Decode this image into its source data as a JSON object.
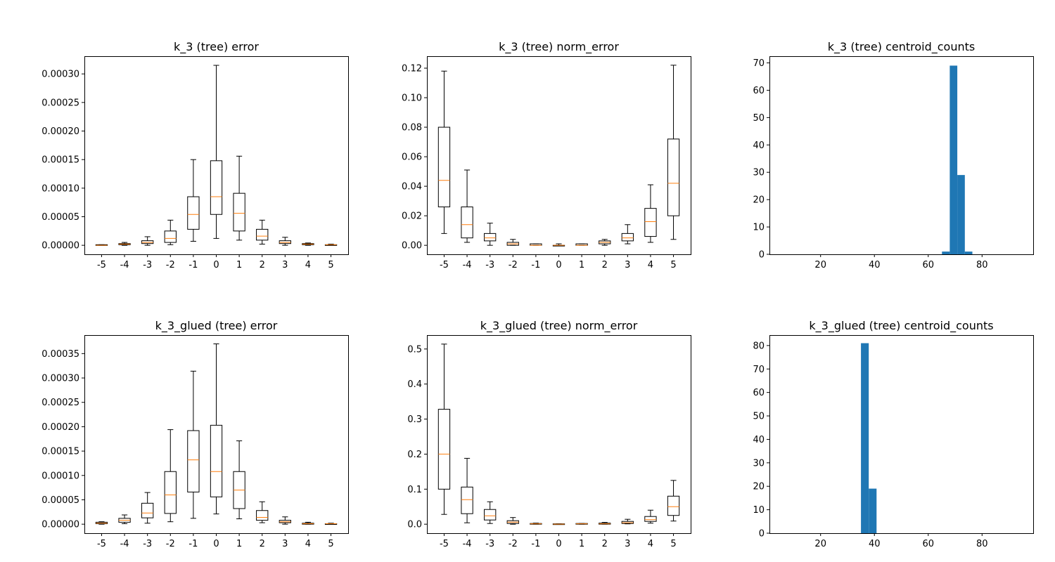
{
  "figure": {
    "background": "#ffffff"
  },
  "colors": {
    "box": "#000000",
    "median": "#ff7f0e",
    "hist": "#1f77b4"
  },
  "chart_data": [
    {
      "type": "box",
      "title": "k_3 (tree) error",
      "categories": [
        "-5",
        "-4",
        "-3",
        "-2",
        "-1",
        "0",
        "1",
        "2",
        "3",
        "4",
        "5"
      ],
      "ylim": [
        -1.58e-05,
        0.000331
      ],
      "yticks": [
        0.0,
        5e-05,
        0.0001,
        0.00015,
        0.0002,
        0.00025,
        0.0003
      ],
      "ytick_labels": [
        "0.00000",
        "0.00005",
        "0.00010",
        "0.00015",
        "0.00020",
        "0.00025",
        "0.00030"
      ],
      "boxes": [
        {
          "whislo": 0.0,
          "q1": 0.0,
          "med": 0.0,
          "q3": 1e-06,
          "whishi": 1e-06
        },
        {
          "whislo": 0.0,
          "q1": 1e-06,
          "med": 2e-06,
          "q3": 3e-06,
          "whishi": 5e-06
        },
        {
          "whislo": 0.0,
          "q1": 3e-06,
          "med": 5e-06,
          "q3": 8e-06,
          "whishi": 1.5e-05
        },
        {
          "whislo": 1e-06,
          "q1": 5e-06,
          "med": 1.2e-05,
          "q3": 2.5e-05,
          "whishi": 4.4e-05
        },
        {
          "whislo": 7e-06,
          "q1": 2.8e-05,
          "med": 5.4e-05,
          "q3": 8.5e-05,
          "whishi": 0.00015
        },
        {
          "whislo": 1.2e-05,
          "q1": 5.4e-05,
          "med": 8.5e-05,
          "q3": 0.000148,
          "whishi": 0.000315
        },
        {
          "whislo": 9e-06,
          "q1": 2.5e-05,
          "med": 5.6e-05,
          "q3": 9.1e-05,
          "whishi": 0.000156
        },
        {
          "whislo": 2e-06,
          "q1": 9e-06,
          "med": 1.6e-05,
          "q3": 2.8e-05,
          "whishi": 4.4e-05
        },
        {
          "whislo": 0.0,
          "q1": 3e-06,
          "med": 5e-06,
          "q3": 8e-06,
          "whishi": 1.4e-05
        },
        {
          "whislo": 0.0,
          "q1": 1e-06,
          "med": 2e-06,
          "q3": 3e-06,
          "whishi": 4e-06
        },
        {
          "whislo": 0.0,
          "q1": 0.0,
          "med": 1e-06,
          "q3": 1e-06,
          "whishi": 2e-06
        }
      ]
    },
    {
      "type": "box",
      "title": "k_3 (tree) norm_error",
      "categories": [
        "-5",
        "-4",
        "-3",
        "-2",
        "-1",
        "0",
        "1",
        "2",
        "3",
        "4",
        "5"
      ],
      "ylim": [
        -0.0061,
        0.1281
      ],
      "yticks": [
        0.0,
        0.02,
        0.04,
        0.06,
        0.08,
        0.1,
        0.12
      ],
      "ytick_labels": [
        "0.00",
        "0.02",
        "0.04",
        "0.06",
        "0.08",
        "0.10",
        "0.12"
      ],
      "boxes": [
        {
          "whislo": 0.008,
          "q1": 0.026,
          "med": 0.044,
          "q3": 0.08,
          "whishi": 0.118
        },
        {
          "whislo": 0.002,
          "q1": 0.005,
          "med": 0.014,
          "q3": 0.026,
          "whishi": 0.051
        },
        {
          "whislo": 0.0,
          "q1": 0.003,
          "med": 0.005,
          "q3": 0.008,
          "whishi": 0.015
        },
        {
          "whislo": 0.0,
          "q1": 0.0,
          "med": 0.001,
          "q3": 0.002,
          "whishi": 0.004
        },
        {
          "whislo": 0.0,
          "q1": 0.0,
          "med": 0.0,
          "q3": 0.001,
          "whishi": 0.001
        },
        {
          "whislo": 0.0,
          "q1": 0.0,
          "med": 0.0,
          "q3": 0.0,
          "whishi": 0.001
        },
        {
          "whislo": 0.0,
          "q1": 0.0,
          "med": 0.0,
          "q3": 0.001,
          "whishi": 0.001
        },
        {
          "whislo": 0.0,
          "q1": 0.001,
          "med": 0.002,
          "q3": 0.003,
          "whishi": 0.004
        },
        {
          "whislo": 0.001,
          "q1": 0.003,
          "med": 0.005,
          "q3": 0.008,
          "whishi": 0.014
        },
        {
          "whislo": 0.002,
          "q1": 0.006,
          "med": 0.016,
          "q3": 0.025,
          "whishi": 0.041
        },
        {
          "whislo": 0.004,
          "q1": 0.02,
          "med": 0.042,
          "q3": 0.072,
          "whishi": 0.122
        }
      ]
    },
    {
      "type": "histogram",
      "title": "k_3 (tree) centroid_counts",
      "xlim": [
        1,
        99
      ],
      "ylim": [
        0,
        72.45
      ],
      "xticks": [
        20,
        40,
        60,
        80
      ],
      "xtick_labels": [
        "20",
        "40",
        "60",
        "80"
      ],
      "yticks": [
        0,
        10,
        20,
        30,
        40,
        50,
        60,
        70
      ],
      "ytick_labels": [
        "0",
        "10",
        "20",
        "30",
        "40",
        "50",
        "60",
        "70"
      ],
      "bins": [
        {
          "x0": 65.1,
          "x1": 68.0,
          "count": 1
        },
        {
          "x0": 68.0,
          "x1": 70.8,
          "count": 69
        },
        {
          "x0": 70.8,
          "x1": 73.6,
          "count": 29
        },
        {
          "x0": 73.6,
          "x1": 76.4,
          "count": 1
        }
      ]
    },
    {
      "type": "box",
      "title": "k_3_glued (tree) error",
      "categories": [
        "-5",
        "-4",
        "-3",
        "-2",
        "-1",
        "0",
        "1",
        "2",
        "3",
        "4",
        "5"
      ],
      "ylim": [
        -1.85e-05,
        0.000388
      ],
      "yticks": [
        0.0,
        5e-05,
        0.0001,
        0.00015,
        0.0002,
        0.00025,
        0.0003,
        0.00035
      ],
      "ytick_labels": [
        "0.00000",
        "0.00005",
        "0.00010",
        "0.00015",
        "0.00020",
        "0.00025",
        "0.00030",
        "0.00035"
      ],
      "boxes": [
        {
          "whislo": 0.0,
          "q1": 1e-06,
          "med": 2e-06,
          "q3": 4e-06,
          "whishi": 5e-06
        },
        {
          "whislo": 1e-06,
          "q1": 4e-06,
          "med": 8e-06,
          "q3": 1.2e-05,
          "whishi": 1.9e-05
        },
        {
          "whislo": 2e-06,
          "q1": 1.3e-05,
          "med": 2.3e-05,
          "q3": 4.3e-05,
          "whishi": 6.5e-05
        },
        {
          "whislo": 5e-06,
          "q1": 2.2e-05,
          "med": 6e-05,
          "q3": 0.000108,
          "whishi": 0.000194
        },
        {
          "whislo": 1.2e-05,
          "q1": 6.6e-05,
          "med": 0.000132,
          "q3": 0.000192,
          "whishi": 0.000314
        },
        {
          "whislo": 2.1e-05,
          "q1": 5.6e-05,
          "med": 0.000108,
          "q3": 0.000203,
          "whishi": 0.00037
        },
        {
          "whislo": 1.1e-05,
          "q1": 3.2e-05,
          "med": 7e-05,
          "q3": 0.000108,
          "whishi": 0.000171
        },
        {
          "whislo": 3e-06,
          "q1": 8e-06,
          "med": 1.4e-05,
          "q3": 2.8e-05,
          "whishi": 4.6e-05
        },
        {
          "whislo": 0.0,
          "q1": 3e-06,
          "med": 5e-06,
          "q3": 8e-06,
          "whishi": 1.5e-05
        },
        {
          "whislo": 0.0,
          "q1": 0.0,
          "med": 1e-06,
          "q3": 2e-06,
          "whishi": 4e-06
        },
        {
          "whislo": 0.0,
          "q1": 0.0,
          "med": 1e-06,
          "q3": 1e-06,
          "whishi": 2e-06
        }
      ]
    },
    {
      "type": "box",
      "title": "k_3_glued (tree) norm_error",
      "categories": [
        "-5",
        "-4",
        "-3",
        "-2",
        "-1",
        "0",
        "1",
        "2",
        "3",
        "4",
        "5"
      ],
      "ylim": [
        -0.0257,
        0.5397
      ],
      "yticks": [
        0.0,
        0.1,
        0.2,
        0.3,
        0.4,
        0.5
      ],
      "ytick_labels": [
        "0.0",
        "0.1",
        "0.2",
        "0.3",
        "0.4",
        "0.5"
      ],
      "boxes": [
        {
          "whislo": 0.028,
          "q1": 0.1,
          "med": 0.2,
          "q3": 0.328,
          "whishi": 0.514
        },
        {
          "whislo": 0.004,
          "q1": 0.03,
          "med": 0.07,
          "q3": 0.106,
          "whishi": 0.188
        },
        {
          "whislo": 0.002,
          "q1": 0.012,
          "med": 0.024,
          "q3": 0.042,
          "whishi": 0.064
        },
        {
          "whislo": 0.0,
          "q1": 0.002,
          "med": 0.006,
          "q3": 0.01,
          "whishi": 0.019
        },
        {
          "whislo": 0.0,
          "q1": 0.0,
          "med": 0.001,
          "q3": 0.002,
          "whishi": 0.003
        },
        {
          "whislo": 0.0,
          "q1": 0.0,
          "med": 0.0,
          "q3": 0.001,
          "whishi": 0.001
        },
        {
          "whislo": 0.0,
          "q1": 0.0,
          "med": 0.001,
          "q3": 0.002,
          "whishi": 0.002
        },
        {
          "whislo": 0.0,
          "q1": 0.0,
          "med": 0.001,
          "q3": 0.003,
          "whishi": 0.005
        },
        {
          "whislo": 0.001,
          "q1": 0.002,
          "med": 0.004,
          "q3": 0.008,
          "whishi": 0.014
        },
        {
          "whislo": 0.003,
          "q1": 0.008,
          "med": 0.013,
          "q3": 0.022,
          "whishi": 0.04
        },
        {
          "whislo": 0.009,
          "q1": 0.025,
          "med": 0.05,
          "q3": 0.08,
          "whishi": 0.125
        }
      ]
    },
    {
      "type": "histogram",
      "title": "k_3_glued (tree) centroid_counts",
      "xlim": [
        1,
        99
      ],
      "ylim": [
        0,
        84.45
      ],
      "xticks": [
        20,
        40,
        60,
        80
      ],
      "xtick_labels": [
        "20",
        "40",
        "60",
        "80"
      ],
      "yticks": [
        0,
        10,
        20,
        30,
        40,
        50,
        60,
        70,
        80
      ],
      "ytick_labels": [
        "0",
        "10",
        "20",
        "30",
        "40",
        "50",
        "60",
        "70",
        "80"
      ],
      "bins": [
        {
          "x0": 35.0,
          "x1": 37.9,
          "count": 81
        },
        {
          "x0": 37.9,
          "x1": 40.8,
          "count": 19
        }
      ]
    }
  ]
}
